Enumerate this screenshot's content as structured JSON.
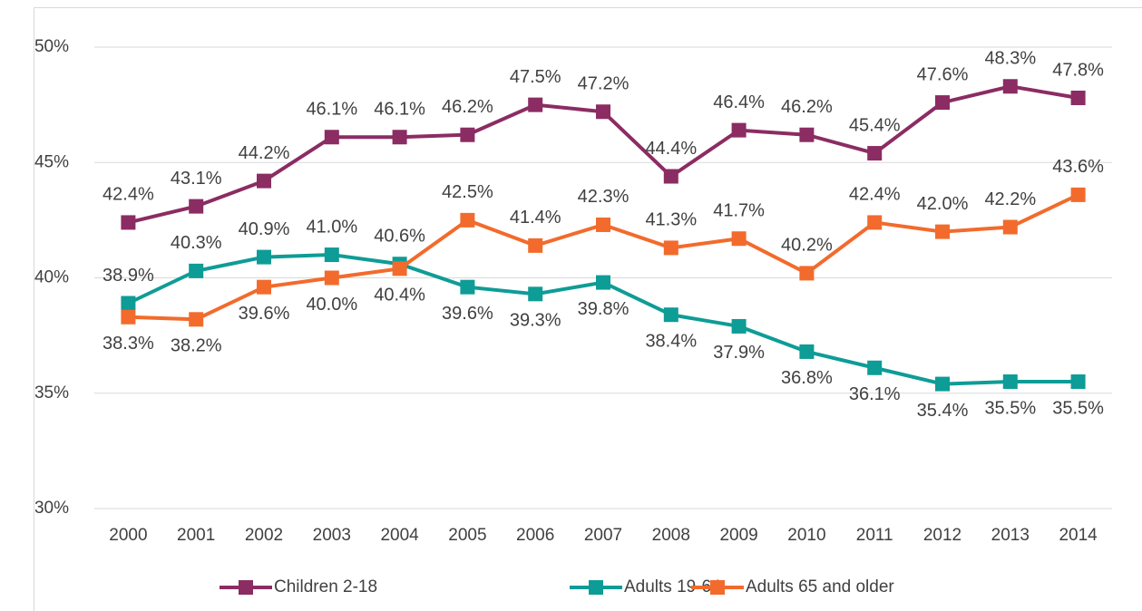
{
  "chart_data": {
    "type": "line",
    "categories": [
      "2000",
      "2001",
      "2002",
      "2003",
      "2004",
      "2005",
      "2006",
      "2007",
      "2008",
      "2009",
      "2010",
      "2011",
      "2012",
      "2013",
      "2014"
    ],
    "series": [
      {
        "name": "Children 2-18",
        "color": "#8b2c63",
        "values": [
          42.4,
          43.1,
          44.2,
          46.1,
          46.1,
          46.2,
          47.5,
          47.2,
          44.4,
          46.4,
          46.2,
          45.4,
          47.6,
          48.3,
          47.8
        ],
        "value_labels": [
          "42.4%",
          "43.1%",
          "44.2%",
          "46.1%",
          "46.1%",
          "46.2%",
          "47.5%",
          "47.2%",
          "44.4%",
          "46.4%",
          "46.2%",
          "45.4%",
          "47.6%",
          "48.3%",
          "47.8%"
        ]
      },
      {
        "name": "Adults 19-64",
        "color": "#0e9c96",
        "values": [
          38.9,
          40.3,
          40.9,
          41.0,
          40.6,
          39.6,
          39.3,
          39.8,
          38.4,
          37.9,
          36.8,
          36.1,
          35.4,
          35.5,
          35.5
        ],
        "value_labels": [
          "38.9%",
          "40.3%",
          "40.9%",
          "41.0%",
          "40.6%",
          "39.6%",
          "39.3%",
          "39.8%",
          "38.4%",
          "37.9%",
          "36.8%",
          "36.1%",
          "35.4%",
          "35.5%",
          "35.5%"
        ]
      },
      {
        "name": "Adults 65 and older",
        "color": "#f26b2c",
        "values": [
          38.3,
          38.2,
          39.6,
          40.0,
          40.4,
          42.5,
          41.4,
          42.3,
          41.3,
          41.7,
          40.2,
          42.4,
          42.0,
          42.2,
          43.6
        ],
        "value_labels": [
          "38.3%",
          "38.2%",
          "39.6%",
          "40.0%",
          "40.4%",
          "42.5%",
          "41.4%",
          "42.3%",
          "41.3%",
          "41.7%",
          "40.2%",
          "42.4%",
          "42.0%",
          "42.2%",
          "43.6%"
        ]
      }
    ],
    "ylim": [
      30,
      50
    ],
    "yticks": [
      {
        "value": 30,
        "label": "30%"
      },
      {
        "value": 35,
        "label": "35%"
      },
      {
        "value": 40,
        "label": "40%"
      },
      {
        "value": 45,
        "label": "45%"
      },
      {
        "value": 50,
        "label": "50%"
      }
    ],
    "grid": true,
    "legend": "bottom"
  }
}
